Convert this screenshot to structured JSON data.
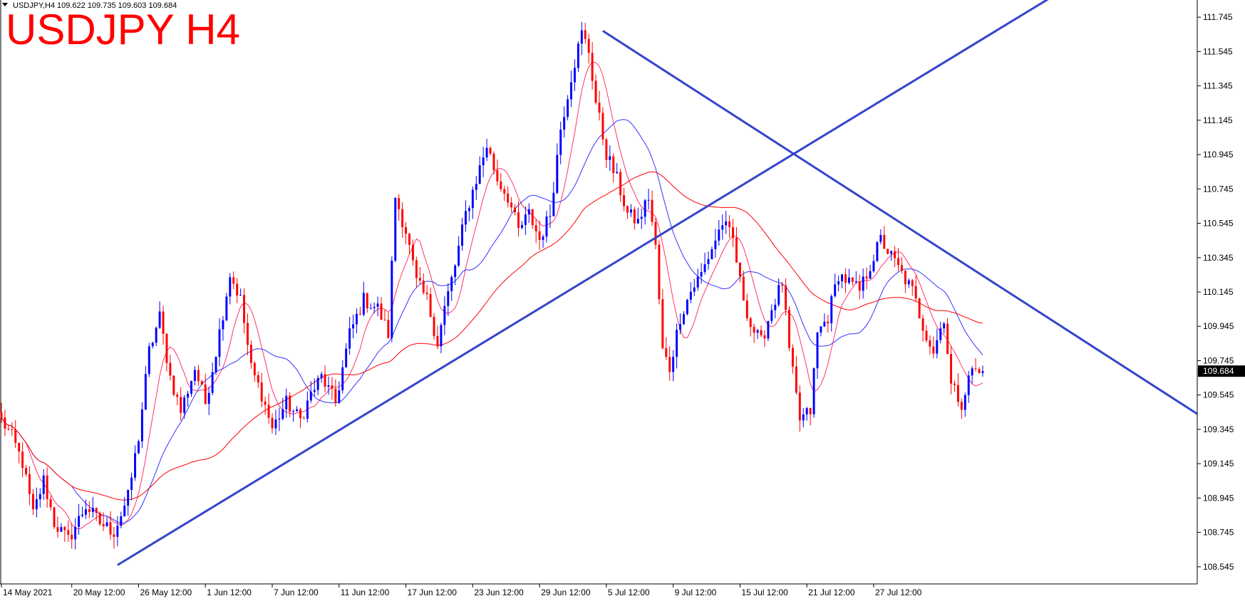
{
  "header": {
    "symbol_timeframe": "USDJPY,H4",
    "ohlc": "109.622 109.735 109.603 109.684"
  },
  "chart_data": {
    "type": "candlestick",
    "title": "USDJPY H4",
    "current_price_label": "109.684",
    "current_price": 109.684,
    "ylim": [
      108.445,
      111.845
    ],
    "xlim_bars": [
      0,
      340
    ],
    "price_ticks": [
      "111.745",
      "111.545",
      "111.345",
      "111.145",
      "110.945",
      "110.745",
      "110.545",
      "110.345",
      "110.145",
      "109.945",
      "109.745",
      "109.545",
      "109.345",
      "109.145",
      "108.945",
      "108.745",
      "108.545"
    ],
    "time_ticks": [
      "14 May 2021",
      "20 May 12:00",
      "26 May 12:00",
      "1 Jun 12:00",
      "7 Jun 12:00",
      "11 Jun 12:00",
      "17 Jun 12:00",
      "23 Jun 12:00",
      "29 Jun 12:00",
      "5 Jul 12:00",
      "9 Jul 12:00",
      "15 Jul 12:00",
      "21 Jul 12:00",
      "27 Jul 12:00"
    ],
    "time_tick_bars": [
      0,
      20,
      39,
      58,
      77,
      96,
      115,
      134,
      153,
      172,
      191,
      210,
      229,
      248
    ],
    "bull_color": "#0000ff",
    "bear_color": "#ff0000",
    "anchors": [
      [
        0,
        109.4
      ],
      [
        3,
        109.3
      ],
      [
        6,
        109.15
      ],
      [
        9,
        108.85
      ],
      [
        12,
        109.05
      ],
      [
        15,
        108.8
      ],
      [
        19,
        108.7
      ],
      [
        24,
        108.9
      ],
      [
        28,
        108.8
      ],
      [
        32,
        108.75
      ],
      [
        36,
        108.95
      ],
      [
        39,
        109.3
      ],
      [
        42,
        109.8
      ],
      [
        45,
        110.0
      ],
      [
        48,
        109.65
      ],
      [
        51,
        109.45
      ],
      [
        55,
        109.7
      ],
      [
        58,
        109.5
      ],
      [
        61,
        109.8
      ],
      [
        65,
        110.25
      ],
      [
        68,
        110.1
      ],
      [
        71,
        109.7
      ],
      [
        74,
        109.55
      ],
      [
        77,
        109.35
      ],
      [
        81,
        109.5
      ],
      [
        85,
        109.4
      ],
      [
        88,
        109.55
      ],
      [
        91,
        109.65
      ],
      [
        95,
        109.5
      ],
      [
        99,
        109.9
      ],
      [
        103,
        110.1
      ],
      [
        107,
        110.05
      ],
      [
        110,
        109.9
      ],
      [
        112,
        110.7
      ],
      [
        115,
        110.5
      ],
      [
        118,
        110.2
      ],
      [
        121,
        110.1
      ],
      [
        124,
        109.85
      ],
      [
        126,
        110.05
      ],
      [
        129,
        110.3
      ],
      [
        132,
        110.6
      ],
      [
        135,
        110.8
      ],
      [
        138,
        111.0
      ],
      [
        141,
        110.8
      ],
      [
        144,
        110.7
      ],
      [
        147,
        110.5
      ],
      [
        150,
        110.6
      ],
      [
        153,
        110.45
      ],
      [
        156,
        110.6
      ],
      [
        159,
        111.1
      ],
      [
        162,
        111.4
      ],
      [
        165,
        111.65
      ],
      [
        167,
        111.55
      ],
      [
        169,
        111.25
      ],
      [
        172,
        110.95
      ],
      [
        175,
        110.8
      ],
      [
        178,
        110.6
      ],
      [
        181,
        110.55
      ],
      [
        184,
        110.7
      ],
      [
        186,
        110.4
      ],
      [
        188,
        109.8
      ],
      [
        190,
        109.7
      ],
      [
        193,
        110.0
      ],
      [
        196,
        110.15
      ],
      [
        199,
        110.25
      ],
      [
        202,
        110.4
      ],
      [
        205,
        110.55
      ],
      [
        208,
        110.45
      ],
      [
        210,
        110.2
      ],
      [
        213,
        109.95
      ],
      [
        216,
        109.85
      ],
      [
        219,
        110.05
      ],
      [
        222,
        110.2
      ],
      [
        224,
        109.8
      ],
      [
        227,
        109.4
      ],
      [
        230,
        109.45
      ],
      [
        232,
        109.9
      ],
      [
        235,
        110.0
      ],
      [
        238,
        110.25
      ],
      [
        241,
        110.2
      ],
      [
        244,
        110.15
      ],
      [
        247,
        110.3
      ],
      [
        250,
        110.45
      ],
      [
        253,
        110.35
      ],
      [
        256,
        110.25
      ],
      [
        259,
        110.15
      ],
      [
        262,
        109.95
      ],
      [
        265,
        109.8
      ],
      [
        268,
        110.0
      ],
      [
        270,
        109.6
      ],
      [
        273,
        109.5
      ],
      [
        276,
        109.7
      ],
      [
        279,
        109.65
      ]
    ],
    "ma_fast_color": "#ff3366",
    "ma_mid_color": "#3333ff",
    "ma_slow_color": "#ff0000",
    "trendline_color": "#3344cc",
    "trendlines": [
      {
        "from": [
          33,
          108.555
        ],
        "to": [
          298,
          111.855
        ]
      },
      {
        "from": [
          171,
          111.665
        ],
        "to": [
          365,
          109.105
        ]
      }
    ]
  }
}
